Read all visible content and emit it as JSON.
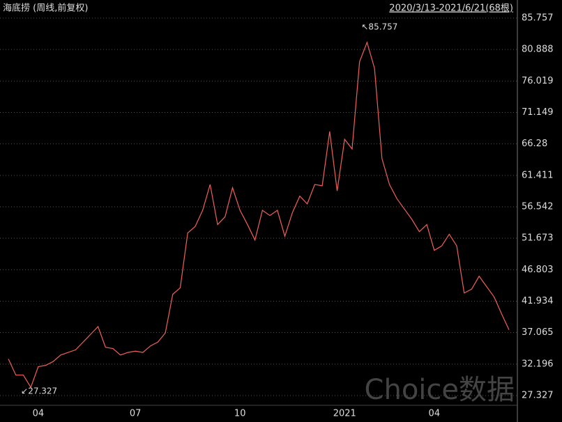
{
  "chart_data": {
    "type": "line",
    "title": "海底捞 (周线,前复权)",
    "range_label": "2020/3/13-2021/6/21(68根)",
    "watermark": "Choice数据",
    "max_label": "↖85.757",
    "min_label": "↙27.327",
    "categories": [
      null,
      null,
      null,
      null,
      "04",
      null,
      null,
      null,
      null,
      null,
      null,
      null,
      null,
      null,
      null,
      null,
      null,
      "07",
      null,
      null,
      null,
      null,
      null,
      null,
      null,
      null,
      null,
      null,
      null,
      null,
      null,
      "10",
      null,
      null,
      null,
      null,
      null,
      null,
      null,
      null,
      null,
      null,
      null,
      null,
      null,
      "2021",
      null,
      null,
      null,
      null,
      null,
      null,
      null,
      null,
      null,
      null,
      null,
      "04",
      null,
      null,
      null,
      null,
      null,
      null,
      null,
      null,
      null,
      null
    ],
    "series": [
      {
        "name": "海底捞",
        "color": "#f0605a",
        "values": [
          33.0,
          30.5,
          30.5,
          28.6,
          31.8,
          32.0,
          32.6,
          33.6,
          34.0,
          34.4,
          35.6,
          36.8,
          38.0,
          34.8,
          34.6,
          33.6,
          34.0,
          34.2,
          34.0,
          35.0,
          35.6,
          37.0,
          43.0,
          44.0,
          52.5,
          53.5,
          56.0,
          60.0,
          53.8,
          55.0,
          59.5,
          56.0,
          53.8,
          51.4,
          56.0,
          55.2,
          56.0,
          52.0,
          55.6,
          58.2,
          57.0,
          60.0,
          59.8,
          68.2,
          59.0,
          67.0,
          65.5,
          79.0,
          82.0,
          78.0,
          64.0,
          60.0,
          57.8,
          56.2,
          54.6,
          52.7,
          53.8,
          49.8,
          50.5,
          52.3,
          50.5,
          43.2,
          43.8,
          45.8,
          44.2,
          42.6,
          40.0,
          37.5
        ]
      }
    ],
    "ylim": [
      27.327,
      85.757
    ],
    "yticks": [
      27.327,
      32.196,
      37.065,
      41.934,
      46.803,
      51.673,
      56.542,
      61.411,
      66.28,
      {
        "value": 71.149,
        "label": "71.149"
      },
      76.019,
      80.888,
      85.757
    ],
    "grid": true
  }
}
